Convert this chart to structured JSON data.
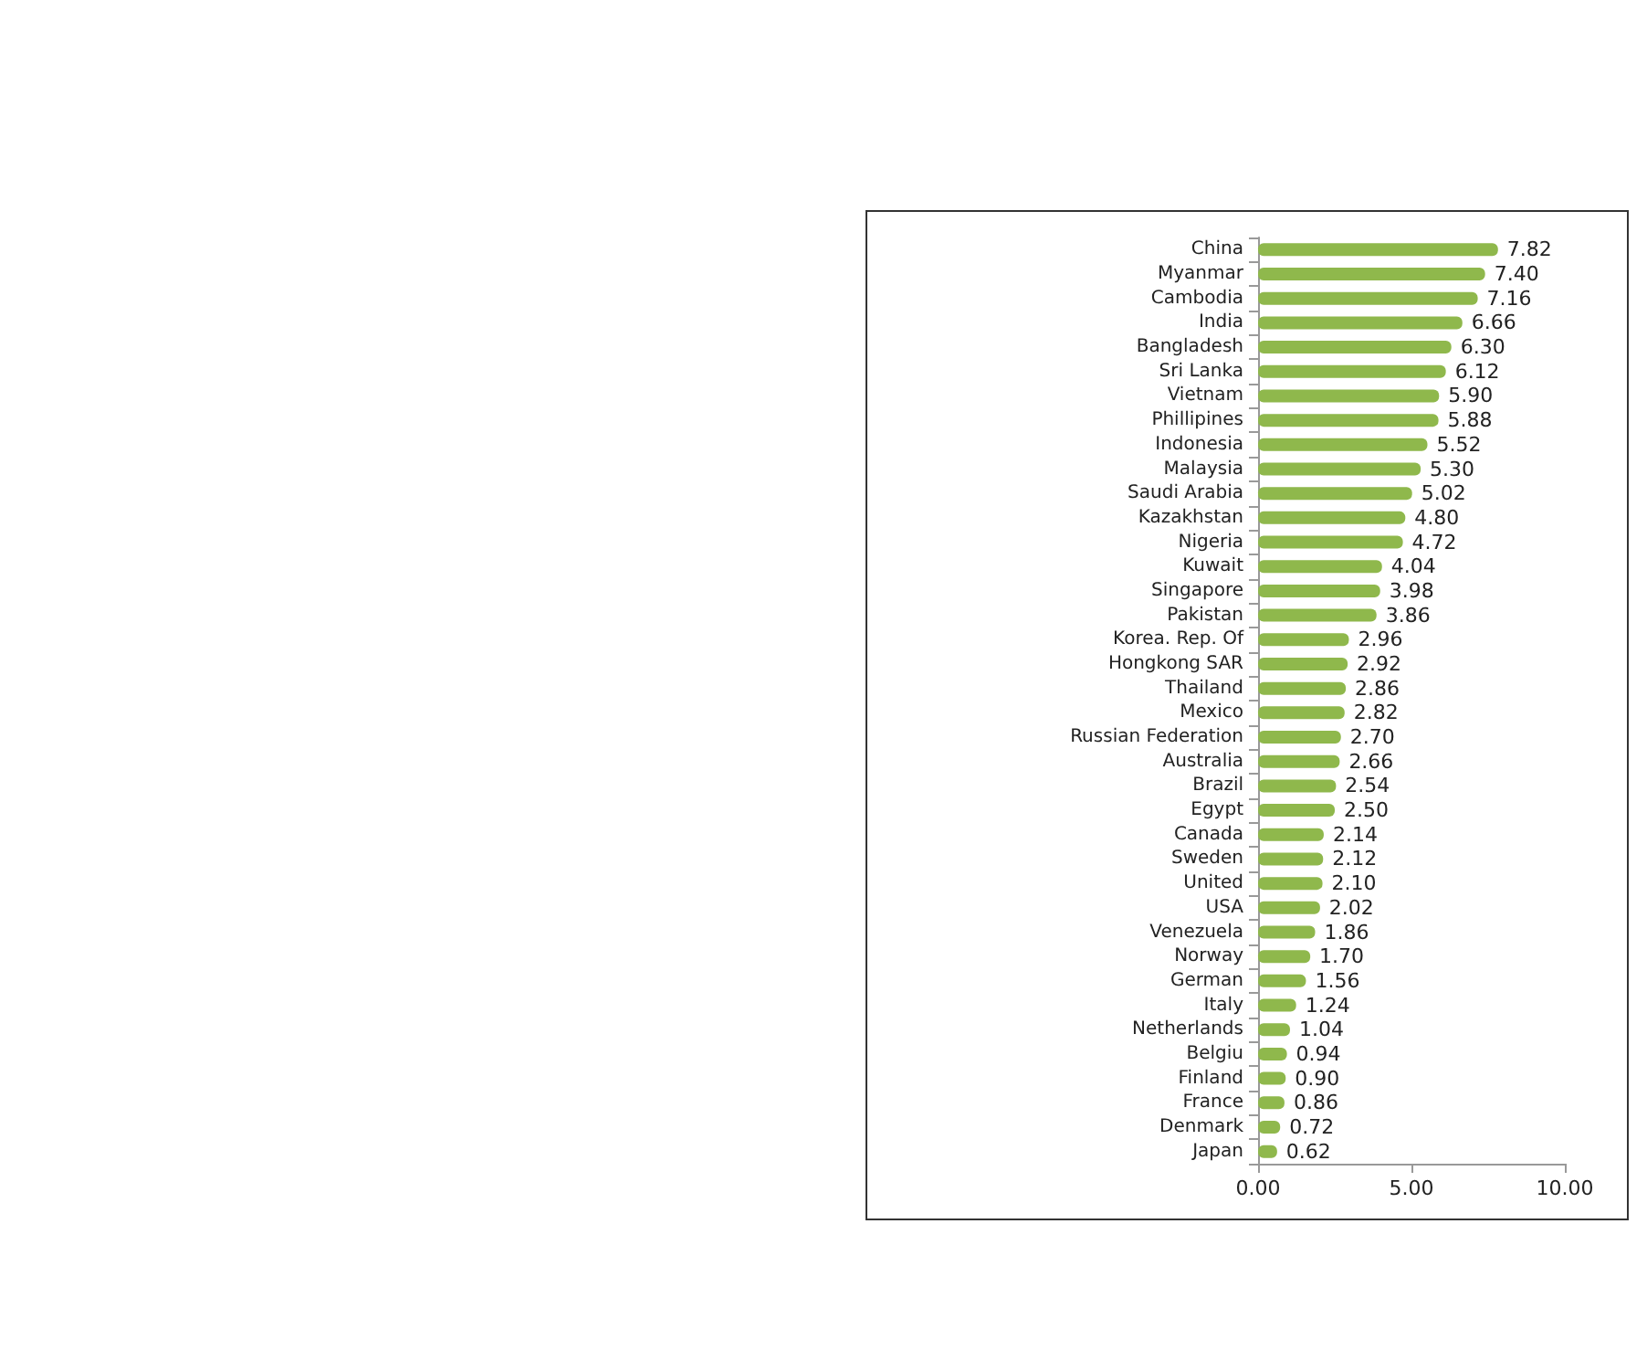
{
  "chart_data": {
    "type": "bar",
    "orientation": "horizontal",
    "categories": [
      "China",
      "Myanmar",
      "Cambodia",
      "India",
      "Bangladesh",
      "Sri Lanka",
      "Vietnam",
      "Phillipines",
      "Indonesia",
      "Malaysia",
      "Saudi Arabia",
      "Kazakhstan",
      "Nigeria",
      "Kuwait",
      "Singapore",
      "Pakistan",
      "Korea. Rep. Of",
      "Hongkong SAR",
      "Thailand",
      "Mexico",
      "Russian Federation",
      "Australia",
      "Brazil",
      "Egypt",
      "Canada",
      "Sweden",
      "United",
      "USA",
      "Venezuela",
      "Norway",
      "German",
      "Italy",
      "Netherlands",
      "Belgiu",
      "Finland",
      "France",
      "Denmark",
      "Japan"
    ],
    "values": [
      7.82,
      7.4,
      7.16,
      6.66,
      6.3,
      6.12,
      5.9,
      5.88,
      5.52,
      5.3,
      5.02,
      4.8,
      4.72,
      4.04,
      3.98,
      3.86,
      2.96,
      2.92,
      2.86,
      2.82,
      2.7,
      2.66,
      2.54,
      2.5,
      2.14,
      2.12,
      2.1,
      2.02,
      1.86,
      1.7,
      1.56,
      1.24,
      1.04,
      0.94,
      0.9,
      0.86,
      0.72,
      0.62
    ],
    "value_labels": [
      "7.82",
      "7.40",
      "7.16",
      "6.66",
      "6.30",
      "6.12",
      "5.90",
      "5.88",
      "5.52",
      "5.30",
      "5.02",
      "4.80",
      "4.72",
      "4.04",
      "3.98",
      "3.86",
      "2.96",
      "2.92",
      "2.86",
      "2.82",
      "2.70",
      "2.66",
      "2.54",
      "2.50",
      "2.14",
      "2.12",
      "2.10",
      "2.02",
      "1.86",
      "1.70",
      "1.56",
      "1.24",
      "1.04",
      "0.94",
      "0.90",
      "0.86",
      "0.72",
      "0.62"
    ],
    "color": "#8fb84c",
    "xlim": [
      0,
      10
    ],
    "xticks": [
      {
        "value": 0,
        "label": "0.00"
      },
      {
        "value": 5,
        "label": "5.00"
      },
      {
        "value": 10,
        "label": "10.00"
      }
    ],
    "grid": false
  }
}
